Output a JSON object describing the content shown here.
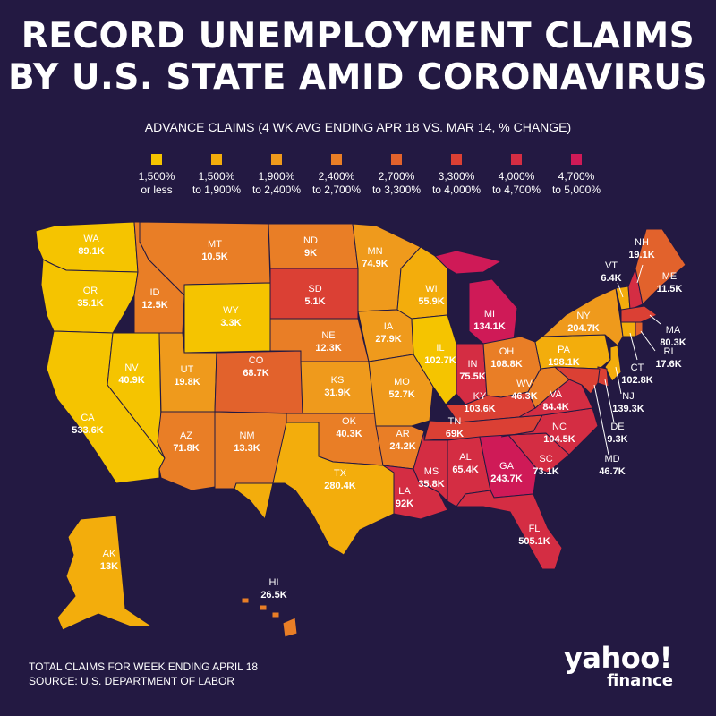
{
  "title_line1": "RECORD UNEMPLOYMENT CLAIMS",
  "title_line2": "BY U.S. STATE AMID CORONAVIRUS",
  "subtitle": "ADVANCE CLAIMS (4 WK AVG ENDING APR 18 VS. MAR 14, % CHANGE)",
  "legend": [
    {
      "line1": "1,500%",
      "line2": "or less",
      "color": "#f5c400"
    },
    {
      "line1": "1,500%",
      "line2": "to 1,900%",
      "color": "#f3ad0c"
    },
    {
      "line1": "1,900%",
      "line2": "to 2,400%",
      "color": "#ef9a1c"
    },
    {
      "line1": "2,400%",
      "line2": "to 2,700%",
      "color": "#e97e26"
    },
    {
      "line1": "2,700%",
      "line2": "to 3,300%",
      "color": "#e2622c"
    },
    {
      "line1": "3,300%",
      "line2": "to 4,000%",
      "color": "#db4034"
    },
    {
      "line1": "4,000%",
      "line2": "to 4,700%",
      "color": "#d42d43"
    },
    {
      "line1": "4,700%",
      "line2": "to 5,000%",
      "color": "#cf1a57"
    }
  ],
  "states": [
    {
      "abbr": "WA",
      "value": "89.1K",
      "bin": 0
    },
    {
      "abbr": "OR",
      "value": "35.1K",
      "bin": 0
    },
    {
      "abbr": "CA",
      "value": "533.6K",
      "bin": 0
    },
    {
      "abbr": "NV",
      "value": "40.9K",
      "bin": 0
    },
    {
      "abbr": "ID",
      "value": "12.5K",
      "bin": 3
    },
    {
      "abbr": "MT",
      "value": "10.5K",
      "bin": 3
    },
    {
      "abbr": "WY",
      "value": "3.3K",
      "bin": 0
    },
    {
      "abbr": "UT",
      "value": "19.8K",
      "bin": 2
    },
    {
      "abbr": "CO",
      "value": "68.7K",
      "bin": 4
    },
    {
      "abbr": "AZ",
      "value": "71.8K",
      "bin": 3
    },
    {
      "abbr": "NM",
      "value": "13.3K",
      "bin": 3
    },
    {
      "abbr": "ND",
      "value": "9K",
      "bin": 3
    },
    {
      "abbr": "SD",
      "value": "5.1K",
      "bin": 5
    },
    {
      "abbr": "NE",
      "value": "12.3K",
      "bin": 3
    },
    {
      "abbr": "KS",
      "value": "31.9K",
      "bin": 2
    },
    {
      "abbr": "OK",
      "value": "40.3K",
      "bin": 3
    },
    {
      "abbr": "TX",
      "value": "280.4K",
      "bin": 1
    },
    {
      "abbr": "MN",
      "value": "74.9K",
      "bin": 2
    },
    {
      "abbr": "IA",
      "value": "27.9K",
      "bin": 2
    },
    {
      "abbr": "MO",
      "value": "52.7K",
      "bin": 2
    },
    {
      "abbr": "AR",
      "value": "24.2K",
      "bin": 3
    },
    {
      "abbr": "LA",
      "value": "92K",
      "bin": 6
    },
    {
      "abbr": "WI",
      "value": "55.9K",
      "bin": 1
    },
    {
      "abbr": "IL",
      "value": "102.7K",
      "bin": 0
    },
    {
      "abbr": "MI",
      "value": "134.1K",
      "bin": 7
    },
    {
      "abbr": "IN",
      "value": "75.5K",
      "bin": 6
    },
    {
      "abbr": "OH",
      "value": "108.8K",
      "bin": 3
    },
    {
      "abbr": "KY",
      "value": "103.6K",
      "bin": 5
    },
    {
      "abbr": "TN",
      "value": "69K",
      "bin": 5
    },
    {
      "abbr": "MS",
      "value": "35.8K",
      "bin": 6
    },
    {
      "abbr": "AL",
      "value": "65.4K",
      "bin": 6
    },
    {
      "abbr": "GA",
      "value": "243.7K",
      "bin": 7
    },
    {
      "abbr": "FL",
      "value": "505.1K",
      "bin": 6
    },
    {
      "abbr": "SC",
      "value": "73.1K",
      "bin": 6
    },
    {
      "abbr": "NC",
      "value": "104.5K",
      "bin": 6
    },
    {
      "abbr": "VA",
      "value": "84.4K",
      "bin": 6
    },
    {
      "abbr": "WV",
      "value": "46.3K",
      "bin": 3
    },
    {
      "abbr": "PA",
      "value": "198.1K",
      "bin": 1
    },
    {
      "abbr": "NY",
      "value": "204.7K",
      "bin": 2
    },
    {
      "abbr": "VT",
      "value": "6.4K",
      "bin": 1
    },
    {
      "abbr": "NH",
      "value": "19.1K",
      "bin": 6
    },
    {
      "abbr": "ME",
      "value": "11.5K",
      "bin": 4
    },
    {
      "abbr": "MA",
      "value": "80.3K",
      "bin": 5
    },
    {
      "abbr": "RI",
      "value": "17.6K",
      "bin": 4
    },
    {
      "abbr": "CT",
      "value": "102.8K",
      "bin": 1
    },
    {
      "abbr": "NJ",
      "value": "139.3K",
      "bin": 1
    },
    {
      "abbr": "DE",
      "value": "9.3K",
      "bin": 5
    },
    {
      "abbr": "MD",
      "value": "46.7K",
      "bin": 5
    },
    {
      "abbr": "AK",
      "value": "13K",
      "bin": 1
    },
    {
      "abbr": "HI",
      "value": "26.5K",
      "bin": 3
    }
  ],
  "footer_line1": "TOTAL CLAIMS FOR WEEK ENDING APRIL 18",
  "footer_line2": "SOURCE:  U.S. DEPARTMENT OF LABOR",
  "logo_line1": "yahoo!",
  "logo_line2": "finance"
}
